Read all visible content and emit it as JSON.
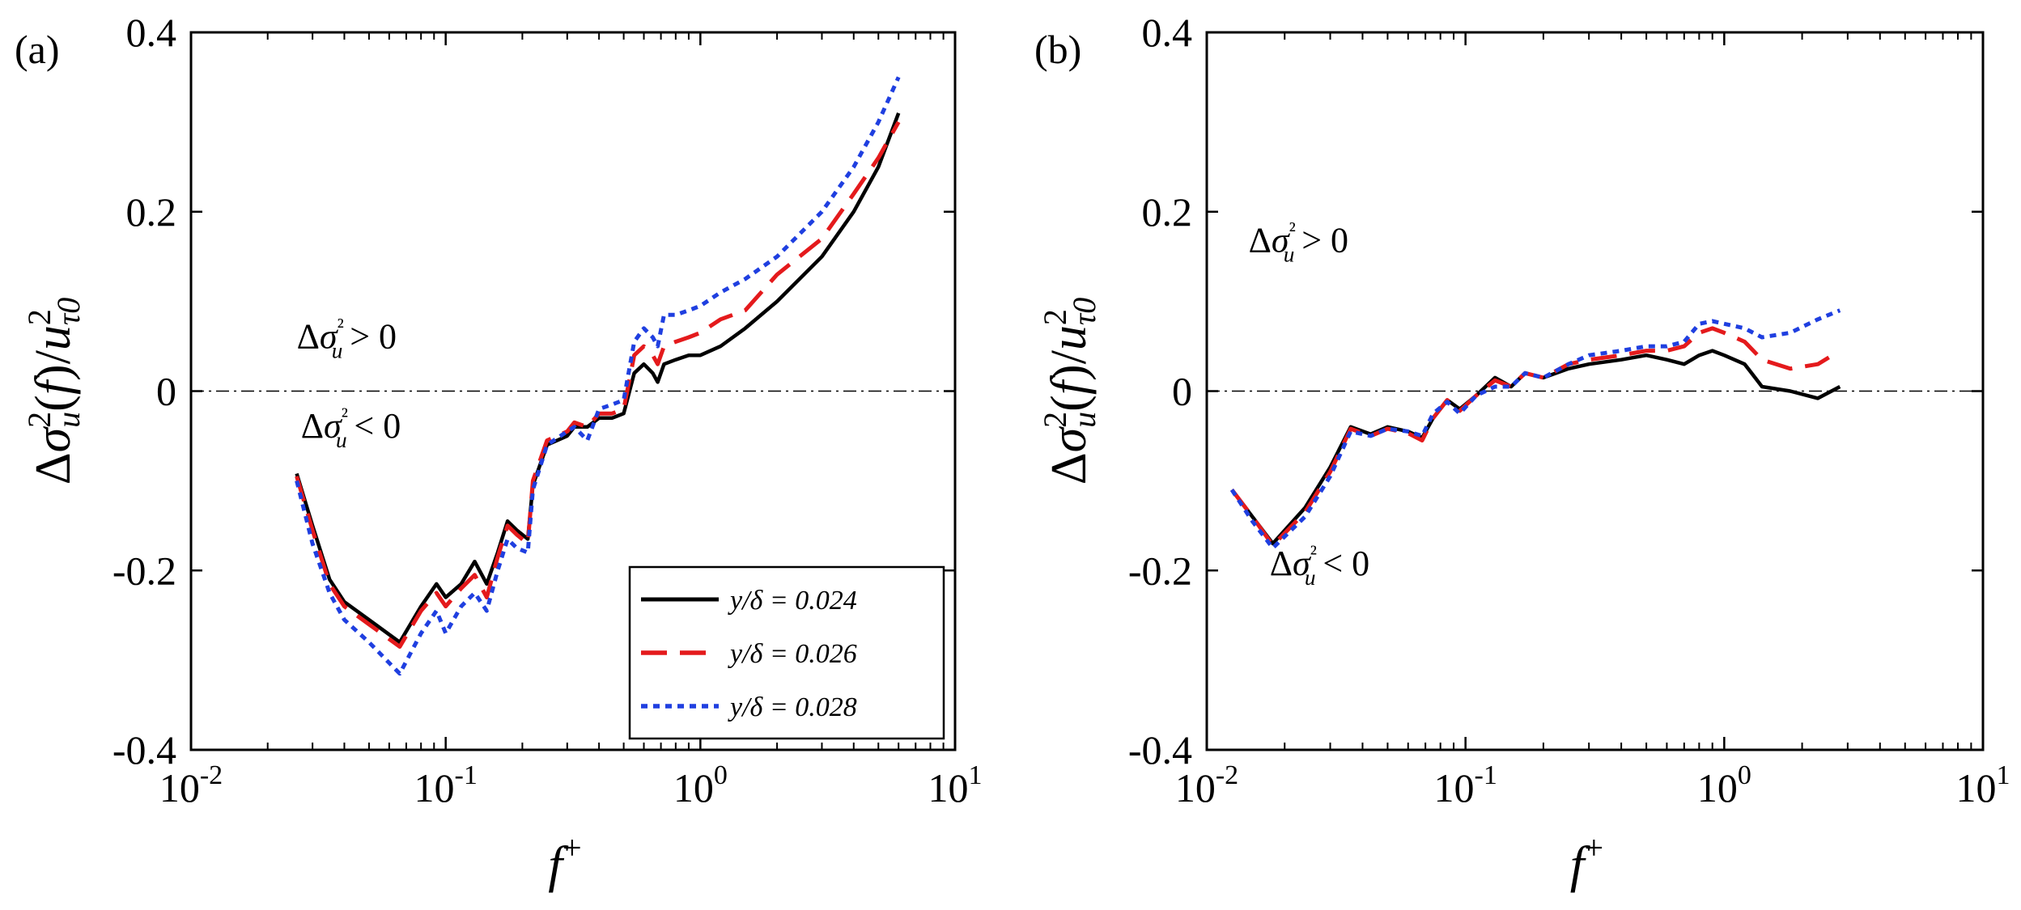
{
  "chart_data": [
    {
      "panel_label": "(a)",
      "type": "line",
      "xscale": "log",
      "xlim": [
        0.01,
        10
      ],
      "ylim": [
        -0.4,
        0.4
      ],
      "xlabel": "f+",
      "ylabel": "Δσu²(f)/uτ0²",
      "xticks": [
        {
          "value": 0.01,
          "base": "10",
          "exp": "-2"
        },
        {
          "value": 0.1,
          "base": "10",
          "exp": "-1"
        },
        {
          "value": 1,
          "base": "10",
          "exp": "0"
        },
        {
          "value": 10,
          "base": "10",
          "exp": "1"
        }
      ],
      "yticks": [
        {
          "value": -0.4,
          "label": "-0.4"
        },
        {
          "value": -0.2,
          "label": "-0.2"
        },
        {
          "value": 0,
          "label": "0"
        },
        {
          "value": 0.2,
          "label": "0.2"
        },
        {
          "value": 0.4,
          "label": "0.4"
        }
      ],
      "reference_line": 0,
      "annotations": [
        {
          "text": "Δσu² > 0",
          "x": 0.026,
          "y": 0.048
        },
        {
          "text": "Δσu² < 0",
          "x": 0.027,
          "y": -0.052
        }
      ],
      "legend": {
        "position": "bottom-right"
      },
      "series": [
        {
          "name": "y/δ = 0.024",
          "color": "#000000",
          "style": "solid",
          "points": [
            [
              0.026,
              -0.092
            ],
            [
              0.03,
              -0.15
            ],
            [
              0.035,
              -0.21
            ],
            [
              0.04,
              -0.235
            ],
            [
              0.05,
              -0.255
            ],
            [
              0.066,
              -0.28
            ],
            [
              0.08,
              -0.24
            ],
            [
              0.092,
              -0.215
            ],
            [
              0.1,
              -0.23
            ],
            [
              0.115,
              -0.215
            ],
            [
              0.13,
              -0.19
            ],
            [
              0.145,
              -0.215
            ],
            [
              0.16,
              -0.18
            ],
            [
              0.175,
              -0.145
            ],
            [
              0.19,
              -0.155
            ],
            [
              0.21,
              -0.165
            ],
            [
              0.22,
              -0.105
            ],
            [
              0.25,
              -0.06
            ],
            [
              0.3,
              -0.05
            ],
            [
              0.32,
              -0.04
            ],
            [
              0.36,
              -0.04
            ],
            [
              0.4,
              -0.03
            ],
            [
              0.45,
              -0.03
            ],
            [
              0.5,
              -0.025
            ],
            [
              0.55,
              0.02
            ],
            [
              0.6,
              0.03
            ],
            [
              0.65,
              0.02
            ],
            [
              0.68,
              0.01
            ],
            [
              0.72,
              0.03
            ],
            [
              0.8,
              0.035
            ],
            [
              0.9,
              0.04
            ],
            [
              1,
              0.04
            ],
            [
              1.2,
              0.05
            ],
            [
              1.5,
              0.07
            ],
            [
              2,
              0.1
            ],
            [
              3,
              0.15
            ],
            [
              4,
              0.2
            ],
            [
              5,
              0.25
            ],
            [
              6,
              0.31
            ]
          ]
        },
        {
          "name": "y/δ = 0.026",
          "color": "#e41a1c",
          "style": "dashed",
          "points": [
            [
              0.026,
              -0.095
            ],
            [
              0.03,
              -0.155
            ],
            [
              0.035,
              -0.215
            ],
            [
              0.04,
              -0.24
            ],
            [
              0.05,
              -0.26
            ],
            [
              0.066,
              -0.285
            ],
            [
              0.08,
              -0.245
            ],
            [
              0.092,
              -0.225
            ],
            [
              0.1,
              -0.24
            ],
            [
              0.115,
              -0.22
            ],
            [
              0.13,
              -0.205
            ],
            [
              0.145,
              -0.23
            ],
            [
              0.16,
              -0.185
            ],
            [
              0.175,
              -0.15
            ],
            [
              0.19,
              -0.16
            ],
            [
              0.21,
              -0.17
            ],
            [
              0.22,
              -0.1
            ],
            [
              0.25,
              -0.055
            ],
            [
              0.3,
              -0.045
            ],
            [
              0.32,
              -0.035
            ],
            [
              0.36,
              -0.04
            ],
            [
              0.4,
              -0.025
            ],
            [
              0.45,
              -0.025
            ],
            [
              0.5,
              -0.02
            ],
            [
              0.55,
              0.04
            ],
            [
              0.6,
              0.05
            ],
            [
              0.65,
              0.04
            ],
            [
              0.68,
              0.03
            ],
            [
              0.72,
              0.05
            ],
            [
              0.8,
              0.055
            ],
            [
              0.9,
              0.06
            ],
            [
              1,
              0.065
            ],
            [
              1.2,
              0.08
            ],
            [
              1.5,
              0.09
            ],
            [
              2,
              0.13
            ],
            [
              3,
              0.17
            ],
            [
              4,
              0.22
            ],
            [
              5,
              0.26
            ],
            [
              6,
              0.3
            ]
          ]
        },
        {
          "name": "y/δ = 0.028",
          "color": "#1f3fe0",
          "style": "dotted",
          "points": [
            [
              0.026,
              -0.1
            ],
            [
              0.03,
              -0.17
            ],
            [
              0.035,
              -0.225
            ],
            [
              0.04,
              -0.255
            ],
            [
              0.05,
              -0.28
            ],
            [
              0.066,
              -0.315
            ],
            [
              0.08,
              -0.27
            ],
            [
              0.092,
              -0.245
            ],
            [
              0.1,
              -0.27
            ],
            [
              0.115,
              -0.24
            ],
            [
              0.13,
              -0.225
            ],
            [
              0.145,
              -0.245
            ],
            [
              0.16,
              -0.2
            ],
            [
              0.175,
              -0.165
            ],
            [
              0.19,
              -0.175
            ],
            [
              0.21,
              -0.18
            ],
            [
              0.22,
              -0.11
            ],
            [
              0.25,
              -0.06
            ],
            [
              0.3,
              -0.045
            ],
            [
              0.32,
              -0.04
            ],
            [
              0.36,
              -0.055
            ],
            [
              0.4,
              -0.02
            ],
            [
              0.45,
              -0.015
            ],
            [
              0.5,
              -0.01
            ],
            [
              0.55,
              0.055
            ],
            [
              0.6,
              0.07
            ],
            [
              0.65,
              0.06
            ],
            [
              0.68,
              0.05
            ],
            [
              0.72,
              0.085
            ],
            [
              0.8,
              0.085
            ],
            [
              0.9,
              0.09
            ],
            [
              1,
              0.095
            ],
            [
              1.2,
              0.11
            ],
            [
              1.5,
              0.125
            ],
            [
              2,
              0.15
            ],
            [
              3,
              0.2
            ],
            [
              4,
              0.25
            ],
            [
              5,
              0.3
            ],
            [
              6,
              0.35
            ]
          ]
        }
      ]
    },
    {
      "panel_label": "(b)",
      "type": "line",
      "xscale": "log",
      "xlim": [
        0.01,
        10
      ],
      "ylim": [
        -0.4,
        0.4
      ],
      "xlabel": "f+",
      "ylabel": "Δσu²(f)/uτ0²",
      "xticks": [
        {
          "value": 0.01,
          "base": "10",
          "exp": "-2"
        },
        {
          "value": 0.1,
          "base": "10",
          "exp": "-1"
        },
        {
          "value": 1,
          "base": "10",
          "exp": "0"
        },
        {
          "value": 10,
          "base": "10",
          "exp": "1"
        }
      ],
      "yticks": [
        {
          "value": -0.4,
          "label": "-0.4"
        },
        {
          "value": -0.2,
          "label": "-0.2"
        },
        {
          "value": 0,
          "label": "0"
        },
        {
          "value": 0.2,
          "label": "0.2"
        },
        {
          "value": 0.4,
          "label": "0.4"
        }
      ],
      "reference_line": 0,
      "annotations": [
        {
          "text": "Δσu² > 0",
          "x": 0.0145,
          "y": 0.155
        },
        {
          "text": "Δσu² < 0",
          "x": 0.0175,
          "y": -0.205
        }
      ],
      "series": [
        {
          "name": "y/δ = 0.024",
          "color": "#000000",
          "style": "solid",
          "points": [
            [
              0.0125,
              -0.11
            ],
            [
              0.015,
              -0.14
            ],
            [
              0.018,
              -0.17
            ],
            [
              0.024,
              -0.13
            ],
            [
              0.03,
              -0.085
            ],
            [
              0.036,
              -0.04
            ],
            [
              0.043,
              -0.048
            ],
            [
              0.05,
              -0.04
            ],
            [
              0.06,
              -0.045
            ],
            [
              0.068,
              -0.052
            ],
            [
              0.075,
              -0.03
            ],
            [
              0.085,
              -0.01
            ],
            [
              0.095,
              -0.02
            ],
            [
              0.11,
              -0.005
            ],
            [
              0.13,
              0.015
            ],
            [
              0.15,
              0.005
            ],
            [
              0.17,
              0.02
            ],
            [
              0.2,
              0.015
            ],
            [
              0.25,
              0.025
            ],
            [
              0.3,
              0.03
            ],
            [
              0.4,
              0.035
            ],
            [
              0.5,
              0.04
            ],
            [
              0.6,
              0.035
            ],
            [
              0.7,
              0.03
            ],
            [
              0.8,
              0.04
            ],
            [
              0.9,
              0.045
            ],
            [
              1,
              0.04
            ],
            [
              1.2,
              0.03
            ],
            [
              1.4,
              0.005
            ],
            [
              1.8,
              0.0
            ],
            [
              2.3,
              -0.008
            ],
            [
              2.8,
              0.005
            ]
          ]
        },
        {
          "name": "y/δ = 0.026",
          "color": "#e41a1c",
          "style": "dashed",
          "points": [
            [
              0.0125,
              -0.11
            ],
            [
              0.015,
              -0.14
            ],
            [
              0.018,
              -0.172
            ],
            [
              0.024,
              -0.135
            ],
            [
              0.03,
              -0.09
            ],
            [
              0.036,
              -0.042
            ],
            [
              0.043,
              -0.05
            ],
            [
              0.05,
              -0.042
            ],
            [
              0.06,
              -0.047
            ],
            [
              0.068,
              -0.055
            ],
            [
              0.075,
              -0.03
            ],
            [
              0.085,
              -0.01
            ],
            [
              0.095,
              -0.022
            ],
            [
              0.11,
              -0.005
            ],
            [
              0.13,
              0.012
            ],
            [
              0.15,
              0.005
            ],
            [
              0.17,
              0.02
            ],
            [
              0.2,
              0.015
            ],
            [
              0.25,
              0.03
            ],
            [
              0.3,
              0.035
            ],
            [
              0.4,
              0.04
            ],
            [
              0.5,
              0.045
            ],
            [
              0.6,
              0.045
            ],
            [
              0.7,
              0.05
            ],
            [
              0.8,
              0.065
            ],
            [
              0.9,
              0.07
            ],
            [
              1,
              0.065
            ],
            [
              1.2,
              0.055
            ],
            [
              1.4,
              0.035
            ],
            [
              1.8,
              0.025
            ],
            [
              2.3,
              0.03
            ],
            [
              2.8,
              0.045
            ]
          ]
        },
        {
          "name": "y/δ = 0.028",
          "color": "#1f3fe0",
          "style": "dotted",
          "points": [
            [
              0.0125,
              -0.11
            ],
            [
              0.015,
              -0.145
            ],
            [
              0.018,
              -0.175
            ],
            [
              0.024,
              -0.14
            ],
            [
              0.03,
              -0.095
            ],
            [
              0.036,
              -0.045
            ],
            [
              0.043,
              -0.05
            ],
            [
              0.05,
              -0.042
            ],
            [
              0.06,
              -0.045
            ],
            [
              0.068,
              -0.05
            ],
            [
              0.075,
              -0.025
            ],
            [
              0.085,
              -0.012
            ],
            [
              0.095,
              -0.025
            ],
            [
              0.11,
              -0.005
            ],
            [
              0.13,
              0.005
            ],
            [
              0.15,
              0.005
            ],
            [
              0.17,
              0.02
            ],
            [
              0.2,
              0.015
            ],
            [
              0.25,
              0.03
            ],
            [
              0.3,
              0.04
            ],
            [
              0.4,
              0.045
            ],
            [
              0.5,
              0.05
            ],
            [
              0.6,
              0.05
            ],
            [
              0.7,
              0.055
            ],
            [
              0.8,
              0.075
            ],
            [
              0.9,
              0.078
            ],
            [
              1,
              0.075
            ],
            [
              1.2,
              0.07
            ],
            [
              1.4,
              0.06
            ],
            [
              1.8,
              0.065
            ],
            [
              2.3,
              0.08
            ],
            [
              2.8,
              0.09
            ]
          ]
        }
      ]
    }
  ]
}
